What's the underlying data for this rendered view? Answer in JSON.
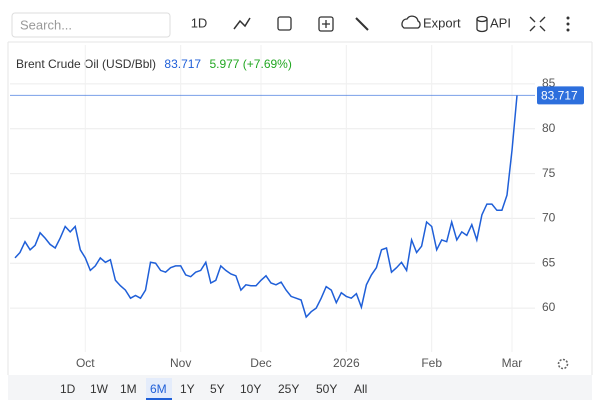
{
  "toolbar": {
    "search": "Search...",
    "interval": "1D",
    "export": "Export",
    "api": "API"
  },
  "ranges": {
    "items": [
      "1D",
      "1W",
      "1M",
      "6M",
      "1Y",
      "5Y",
      "10Y",
      "25Y",
      "50Y",
      "All"
    ],
    "active": "6M"
  },
  "chart_data": {
    "type": "line",
    "title": "Brent Crude Oil (USD/Bbl)",
    "change": "5.977 (+7.69%)",
    "categories": [
      null,
      null,
      null,
      null,
      null,
      null,
      null,
      null,
      null,
      null,
      null,
      null,
      null,
      null,
      "Oct",
      null,
      null,
      null,
      null,
      null,
      null,
      null,
      null,
      null,
      null,
      null,
      null,
      null,
      null,
      null,
      null,
      null,
      null,
      "Nov",
      null,
      null,
      null,
      null,
      null,
      null,
      null,
      null,
      null,
      null,
      null,
      null,
      null,
      null,
      null,
      "Dec",
      null,
      null,
      null,
      null,
      null,
      null,
      null,
      null,
      null,
      null,
      null,
      null,
      null,
      null,
      null,
      null,
      "2026",
      null,
      null,
      null,
      null,
      null,
      null,
      null,
      null,
      null,
      null,
      null,
      null,
      null,
      null,
      null,
      null,
      "Feb",
      null,
      null,
      null,
      null,
      null,
      null,
      null,
      null,
      null,
      null,
      null,
      null,
      null,
      null,
      null,
      "Mar",
      null
    ],
    "series": [
      {
        "name": "Brent Crude Oil (USD/Bbl)",
        "color": "#1f5fd8",
        "values": [
          65.6,
          66.2,
          67.4,
          66.5,
          67,
          68.4,
          67.8,
          67.1,
          66.7,
          67.8,
          69.1,
          68.5,
          69.1,
          66.5,
          65.6,
          64.2,
          64.7,
          65.6,
          65.1,
          65.4,
          63.1,
          62.5,
          62,
          61.1,
          61.4,
          61.1,
          62,
          65.1,
          65,
          64.2,
          64,
          64.5,
          64.7,
          64.7,
          63.7,
          63.5,
          64,
          64.2,
          65.1,
          62.8,
          63.1,
          64.7,
          64.2,
          63.8,
          63.6,
          62,
          62.6,
          62.5,
          62.5,
          63.1,
          63.6,
          62.8,
          62.6,
          62.9,
          62,
          61.3,
          61.1,
          60.9,
          59,
          59.6,
          60,
          61.1,
          62.4,
          62,
          60.6,
          61.7,
          61.3,
          61.1,
          61.6,
          60.1,
          62.6,
          63.7,
          64.5,
          66.5,
          66.7,
          64,
          64.5,
          65.1,
          64.2,
          67.6,
          66.2,
          66.9,
          69.6,
          69.1,
          66.5,
          67.6,
          67.4,
          69.6,
          67.6,
          68.5,
          68.1,
          69.3,
          67.6,
          70.4,
          71.6,
          71.6,
          70.9,
          70.9,
          72.6,
          77.6,
          83.717
        ]
      }
    ],
    "ylim": [
      55.1,
      89.9
    ],
    "yticks": [
      60,
      65,
      70,
      75,
      80,
      85
    ],
    "grid": true
  }
}
